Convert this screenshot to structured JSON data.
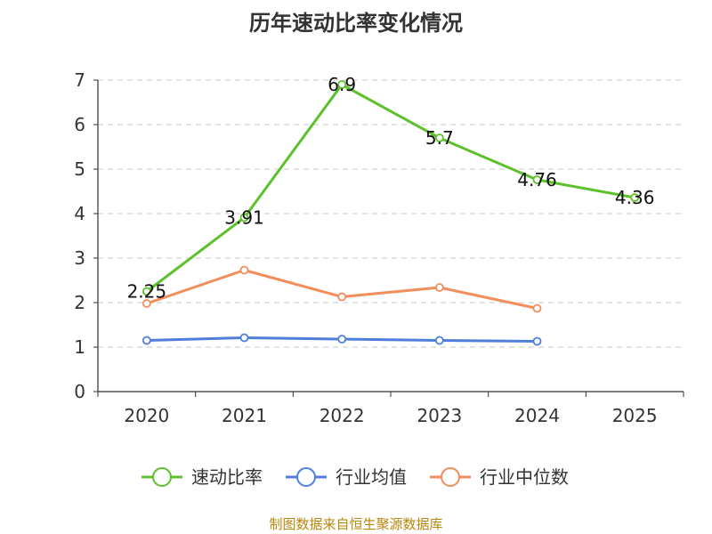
{
  "chart_data": {
    "type": "line",
    "title": "历年速动比率变化情况",
    "categories": [
      "2020",
      "2021",
      "2022",
      "2023",
      "2024",
      "2025"
    ],
    "yticks": [
      "0",
      "1",
      "2",
      "3",
      "4",
      "5",
      "6",
      "7"
    ],
    "ylim": [
      0,
      7
    ],
    "grid": true,
    "legend_position": "bottom",
    "series": [
      {
        "name": "速动比率",
        "color": "#5cc12b",
        "values": [
          2.25,
          3.91,
          6.9,
          5.7,
          4.76,
          4.36
        ],
        "labels": [
          "2.25",
          "3.91",
          "6.9",
          "5.7",
          "4.76",
          "4.36"
        ]
      },
      {
        "name": "行业均值",
        "color": "#4f7fdb",
        "values": [
          1.15,
          1.21,
          1.18,
          1.15,
          1.13,
          null
        ]
      },
      {
        "name": "行业中位数",
        "color": "#f28e5b",
        "values": [
          1.98,
          2.73,
          2.13,
          2.34,
          1.87,
          null
        ]
      }
    ]
  },
  "source": "制图数据来自恒生聚源数据库"
}
